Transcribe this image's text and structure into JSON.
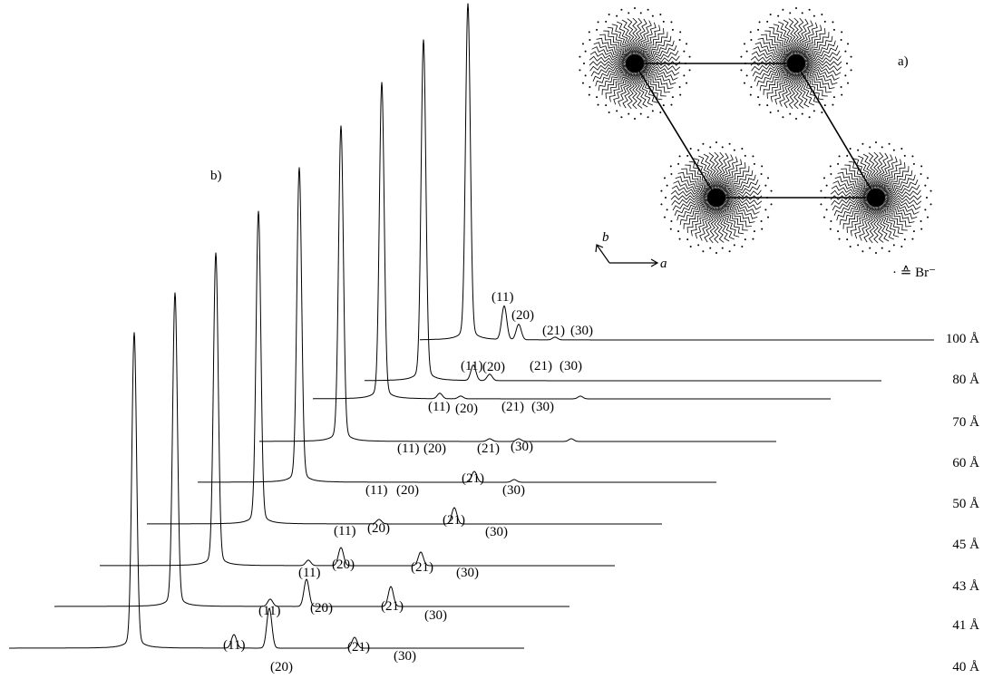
{
  "panel_a": {
    "label": "a)",
    "axis_a": "a",
    "axis_b": "b",
    "legend": "· ≙ Br⁻"
  },
  "panel_b": {
    "label": "b)",
    "traces": [
      {
        "label": "40 Å",
        "peaks": [
          "(11)",
          "(20)",
          "(21)",
          "(30)"
        ]
      },
      {
        "label": "41 Å",
        "peaks": [
          "(11)",
          "(20)",
          "(21)",
          "(30)"
        ]
      },
      {
        "label": "43 Å",
        "peaks": [
          "(11)",
          "(20)",
          "(21)",
          "(30)"
        ]
      },
      {
        "label": "45 Å",
        "peaks": [
          "(11)",
          "(20)",
          "(21)",
          "(30)"
        ]
      },
      {
        "label": "50 Å",
        "peaks": [
          "(11)",
          "(20)",
          "(21)",
          "(30)"
        ]
      },
      {
        "label": "60 Å",
        "peaks": [
          "(11)",
          "(20)",
          "(21)",
          "(30)"
        ]
      },
      {
        "label": "70 Å",
        "peaks": [
          "(11)",
          "(20)",
          "(21)",
          "(30)"
        ]
      },
      {
        "label": "80 Å",
        "peaks": [
          "(11)",
          "(20)",
          "(21)",
          "(30)"
        ]
      },
      {
        "label": "100 Å",
        "peaks": [
          "(11)",
          "(20)",
          "(21)",
          "(30)"
        ]
      }
    ]
  }
}
